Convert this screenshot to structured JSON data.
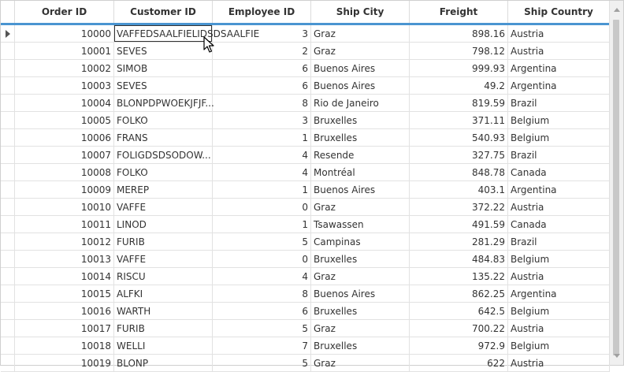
{
  "columns": [
    "Order ID",
    "Customer ID",
    "Employee ID",
    "Ship City",
    "Freight",
    "Ship Country"
  ],
  "rows": [
    [
      "10000",
      "VAFFEDSAALFIELIDSDSAALFIE",
      "3",
      "Graz",
      "898.16",
      "Austria"
    ],
    [
      "10001",
      "SEVES",
      "2",
      "Graz",
      "798.12",
      "Austria"
    ],
    [
      "10002",
      "SIMOB",
      "6",
      "Buenos Aires",
      "999.93",
      "Argentina"
    ],
    [
      "10003",
      "SEVES",
      "6",
      "Buenos Aires",
      "49.2",
      "Argentina"
    ],
    [
      "10004",
      "BLONPDPWOEKJFJF...",
      "8",
      "Rio de Janeiro",
      "819.59",
      "Brazil"
    ],
    [
      "10005",
      "FOLKO",
      "3",
      "Bruxelles",
      "371.11",
      "Belgium"
    ],
    [
      "10006",
      "FRANS",
      "1",
      "Bruxelles",
      "540.93",
      "Belgium"
    ],
    [
      "10007",
      "FOLIGDSDSODOW...",
      "4",
      "Resende",
      "327.75",
      "Brazil"
    ],
    [
      "10008",
      "FOLKO",
      "4",
      "Montréal",
      "848.78",
      "Canada"
    ],
    [
      "10009",
      "MEREP",
      "1",
      "Buenos Aires",
      "403.1",
      "Argentina"
    ],
    [
      "10010",
      "VAFFE",
      "0",
      "Graz",
      "372.22",
      "Austria"
    ],
    [
      "10011",
      "LINOD",
      "1",
      "Tsawassen",
      "491.59",
      "Canada"
    ],
    [
      "10012",
      "FURIB",
      "5",
      "Campinas",
      "281.29",
      "Brazil"
    ],
    [
      "10013",
      "VAFFE",
      "0",
      "Bruxelles",
      "484.83",
      "Belgium"
    ],
    [
      "10014",
      "RISCU",
      "4",
      "Graz",
      "135.22",
      "Austria"
    ],
    [
      "10015",
      "ALFKI",
      "8",
      "Buenos Aires",
      "862.25",
      "Argentina"
    ],
    [
      "10016",
      "WARTH",
      "6",
      "Bruxelles",
      "642.5",
      "Belgium"
    ],
    [
      "10017",
      "FURIB",
      "5",
      "Graz",
      "700.22",
      "Austria"
    ],
    [
      "10018",
      "WELLI",
      "7",
      "Bruxelles",
      "972.9",
      "Belgium"
    ],
    [
      "10019",
      "BLONP",
      "5",
      "Graz",
      "622",
      "Austria"
    ]
  ],
  "selected_row": 0,
  "editing_cell": [
    0,
    1
  ],
  "accent_color": "#4a95d1",
  "icons": {
    "row_indicator": "current-row-arrow-icon",
    "scroll_up": "scroll-up-arrow-icon",
    "scroll_down": "scroll-down-arrow-icon",
    "pointer": "mouse-pointer-icon"
  }
}
